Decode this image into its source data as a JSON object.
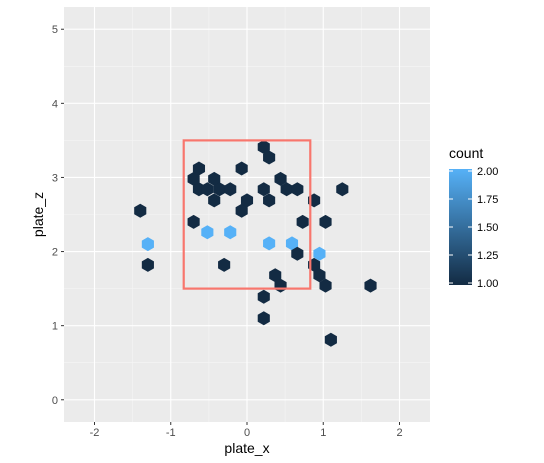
{
  "chart_data": {
    "type": "hexbin",
    "title": "",
    "xlabel": "plate_x",
    "ylabel": "plate_z",
    "xlim": [
      -2.4,
      2.4
    ],
    "ylim": [
      -0.3,
      5.3
    ],
    "x_ticks": [
      -2,
      -1,
      0,
      1,
      2
    ],
    "y_ticks": [
      0,
      1,
      2,
      3,
      4,
      5
    ],
    "x_tick_labels": [
      "-2",
      "-1",
      "0",
      "1",
      "2"
    ],
    "y_tick_labels": [
      "0",
      "1",
      "2",
      "3",
      "4",
      "5"
    ],
    "grid": true,
    "legend": {
      "title": "count",
      "position": "right",
      "min": 1.0,
      "max": 2.0,
      "labels": [
        "2.00",
        "1.75",
        "1.50",
        "1.25",
        "1.00"
      ],
      "label_values": [
        2.0,
        1.75,
        1.5,
        1.25,
        1.0
      ],
      "color_low": "#132B43",
      "color_high": "#56B1F7"
    },
    "strike_zone": {
      "x": [
        -0.83,
        0.83
      ],
      "z": [
        1.5,
        3.5
      ],
      "color": "#F8766D"
    },
    "colors": {
      "panel": "#EBEBEB",
      "grid_major": "#FFFFFF",
      "low": "#132B43",
      "high": "#56B1F7"
    },
    "bins": [
      {
        "x": -1.4,
        "y": 2.55,
        "count": 1
      },
      {
        "x": -1.3,
        "y": 2.1,
        "count": 2
      },
      {
        "x": -1.3,
        "y": 1.82,
        "count": 1
      },
      {
        "x": -0.7,
        "y": 2.98,
        "count": 1
      },
      {
        "x": -0.63,
        "y": 3.12,
        "count": 1
      },
      {
        "x": -0.63,
        "y": 2.84,
        "count": 1
      },
      {
        "x": -0.7,
        "y": 2.4,
        "count": 1
      },
      {
        "x": -0.52,
        "y": 2.84,
        "count": 1
      },
      {
        "x": -0.52,
        "y": 2.26,
        "count": 2
      },
      {
        "x": -0.43,
        "y": 2.98,
        "count": 1
      },
      {
        "x": -0.43,
        "y": 2.69,
        "count": 1
      },
      {
        "x": -0.36,
        "y": 2.84,
        "count": 1
      },
      {
        "x": -0.3,
        "y": 1.82,
        "count": 1
      },
      {
        "x": -0.22,
        "y": 2.26,
        "count": 2
      },
      {
        "x": -0.22,
        "y": 2.84,
        "count": 1
      },
      {
        "x": -0.07,
        "y": 3.12,
        "count": 1
      },
      {
        "x": -0.07,
        "y": 2.55,
        "count": 1
      },
      {
        "x": 0.0,
        "y": 2.69,
        "count": 1
      },
      {
        "x": 0.22,
        "y": 3.41,
        "count": 1
      },
      {
        "x": 0.29,
        "y": 3.27,
        "count": 1
      },
      {
        "x": 0.22,
        "y": 2.84,
        "count": 1
      },
      {
        "x": 0.29,
        "y": 2.69,
        "count": 1
      },
      {
        "x": 0.29,
        "y": 2.11,
        "count": 2
      },
      {
        "x": 0.37,
        "y": 1.68,
        "count": 1
      },
      {
        "x": 0.44,
        "y": 2.98,
        "count": 1
      },
      {
        "x": 0.44,
        "y": 1.54,
        "count": 1
      },
      {
        "x": 0.52,
        "y": 2.84,
        "count": 1
      },
      {
        "x": 0.59,
        "y": 2.11,
        "count": 2
      },
      {
        "x": 0.66,
        "y": 2.84,
        "count": 1
      },
      {
        "x": 0.66,
        "y": 1.97,
        "count": 1
      },
      {
        "x": 0.73,
        "y": 2.4,
        "count": 1
      },
      {
        "x": 0.88,
        "y": 2.69,
        "count": 1
      },
      {
        "x": 0.88,
        "y": 1.82,
        "count": 1
      },
      {
        "x": 0.95,
        "y": 1.97,
        "count": 2
      },
      {
        "x": 0.95,
        "y": 1.68,
        "count": 1
      },
      {
        "x": 1.03,
        "y": 2.4,
        "count": 1
      },
      {
        "x": 1.03,
        "y": 1.54,
        "count": 1
      },
      {
        "x": 1.25,
        "y": 2.84,
        "count": 1
      },
      {
        "x": 0.22,
        "y": 1.39,
        "count": 1
      },
      {
        "x": 0.22,
        "y": 1.1,
        "count": 1
      },
      {
        "x": 1.1,
        "y": 0.81,
        "count": 1
      },
      {
        "x": 1.62,
        "y": 1.54,
        "count": 1
      }
    ]
  }
}
